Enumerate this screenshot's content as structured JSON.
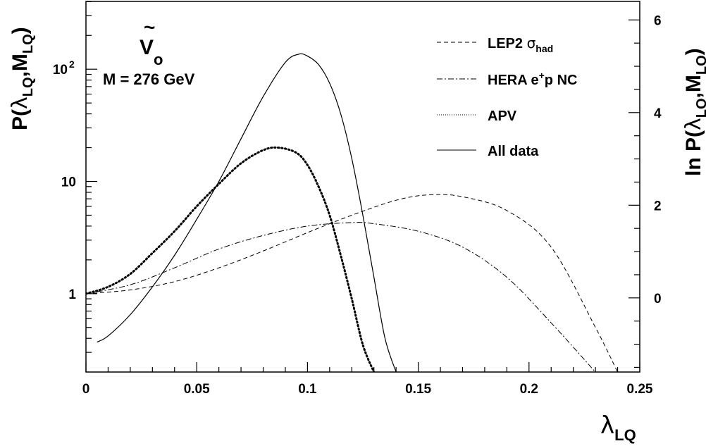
{
  "chart_data": {
    "type": "line",
    "title": "",
    "annotation": {
      "particle_symbol": "V",
      "particle_tilde": "~",
      "particle_subscript": "o",
      "mass_label": "M = 276 GeV"
    },
    "xlabel": {
      "main": "λ",
      "sub": "LQ"
    },
    "ylabel_left": {
      "p": "P(",
      "lambda": "λ",
      "lambda_sub": "LQ",
      "comma_m": ",M",
      "m_sub": "LQ",
      "close": ")"
    },
    "ylabel_right": {
      "ln": "ln P(",
      "lambda": "λ",
      "lambda_sub": "LQ",
      "comma_m": ",M",
      "m_sub": "LQ",
      "close": ")"
    },
    "xlim": [
      0,
      0.25
    ],
    "ylim_log10": [
      -0.698,
      2.604
    ],
    "ylim_ln_right": [
      -1.6,
      6.4
    ],
    "x_ticks": [
      {
        "value": 0,
        "label": "0"
      },
      {
        "value": 0.05,
        "label": "0.05"
      },
      {
        "value": 0.1,
        "label": "0.1"
      },
      {
        "value": 0.15,
        "label": "0.15"
      },
      {
        "value": 0.2,
        "label": "0.2"
      },
      {
        "value": 0.25,
        "label": "0.25"
      }
    ],
    "y_left_ticks": [
      {
        "value": 1,
        "label": "1"
      },
      {
        "value": 10,
        "label": "10"
      },
      {
        "value": 100,
        "label": "10",
        "exp": "2"
      }
    ],
    "y_right_ticks": [
      {
        "value": 0,
        "label": "0"
      },
      {
        "value": 2,
        "label": "2"
      },
      {
        "value": 4,
        "label": "4"
      },
      {
        "value": 6,
        "label": "6"
      }
    ],
    "legend_position": "top-right",
    "series": [
      {
        "name": "LEP2 σhad",
        "legend": {
          "main": "LEP2 ",
          "greek": "σ",
          "sub": "had"
        },
        "style": "dashed",
        "x": [
          0,
          0.02,
          0.04,
          0.06,
          0.08,
          0.1,
          0.12,
          0.14,
          0.155,
          0.17,
          0.19,
          0.21,
          0.23,
          0.24
        ],
        "y": [
          1.0,
          1.08,
          1.28,
          1.7,
          2.4,
          3.5,
          5.0,
          6.8,
          7.6,
          7.3,
          5.5,
          2.6,
          0.5,
          0.2
        ]
      },
      {
        "name": "HERA e+p NC",
        "legend": {
          "main": "HERA e",
          "sup": "+",
          "tail": "p NC"
        },
        "style": "dashdot",
        "x": [
          0,
          0.02,
          0.04,
          0.06,
          0.08,
          0.1,
          0.12,
          0.13,
          0.15,
          0.17,
          0.19,
          0.21,
          0.23
        ],
        "y": [
          1.0,
          1.2,
          1.7,
          2.5,
          3.3,
          4.0,
          4.3,
          4.2,
          3.6,
          2.6,
          1.4,
          0.55,
          0.2
        ]
      },
      {
        "name": "APV",
        "legend": {
          "main": "APV"
        },
        "style": "dotted",
        "x": [
          0,
          0.01,
          0.02,
          0.03,
          0.04,
          0.05,
          0.06,
          0.07,
          0.08,
          0.087,
          0.095,
          0.1,
          0.105,
          0.11,
          0.115,
          0.12,
          0.125,
          0.13
        ],
        "y": [
          1.0,
          1.15,
          1.5,
          2.3,
          3.6,
          6.0,
          9.5,
          14.5,
          19.0,
          20.0,
          18.0,
          14.0,
          9.0,
          5.0,
          2.2,
          0.9,
          0.35,
          0.2
        ]
      },
      {
        "name": "All data",
        "legend": {
          "main": "All data"
        },
        "style": "solid",
        "x": [
          0.005,
          0.01,
          0.02,
          0.03,
          0.04,
          0.05,
          0.06,
          0.07,
          0.08,
          0.09,
          0.096,
          0.1,
          0.105,
          0.11,
          0.115,
          0.12,
          0.125,
          0.13,
          0.135,
          0.14
        ],
        "y": [
          0.37,
          0.42,
          0.65,
          1.15,
          2.2,
          4.6,
          10.0,
          24.0,
          57.0,
          115.0,
          136.0,
          131.0,
          110.0,
          75.0,
          40.0,
          16.0,
          5.0,
          1.4,
          0.4,
          0.2
        ]
      }
    ]
  }
}
